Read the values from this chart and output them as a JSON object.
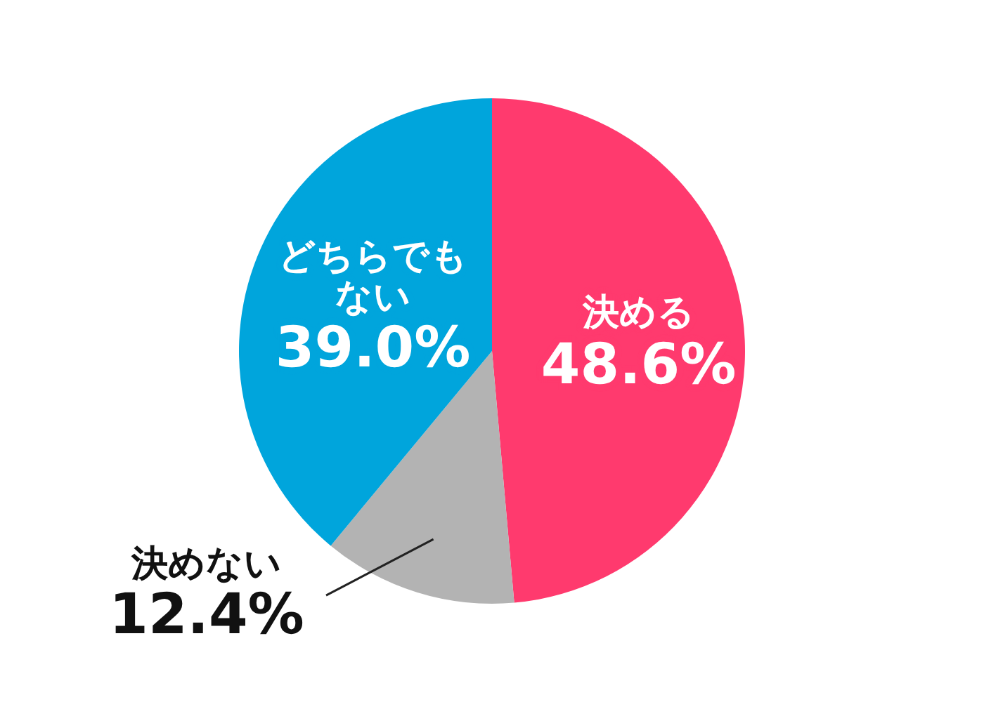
{
  "chart_data": {
    "type": "pie",
    "categories": [
      "決める",
      "決めない",
      "どちらでもない"
    ],
    "values": [
      48.6,
      12.4,
      39.0
    ],
    "colors": [
      "#ff3a6e",
      "#b3b3b3",
      "#00a5dc"
    ],
    "value_labels": [
      "48.6%",
      "12.4%",
      "39.0%"
    ]
  }
}
